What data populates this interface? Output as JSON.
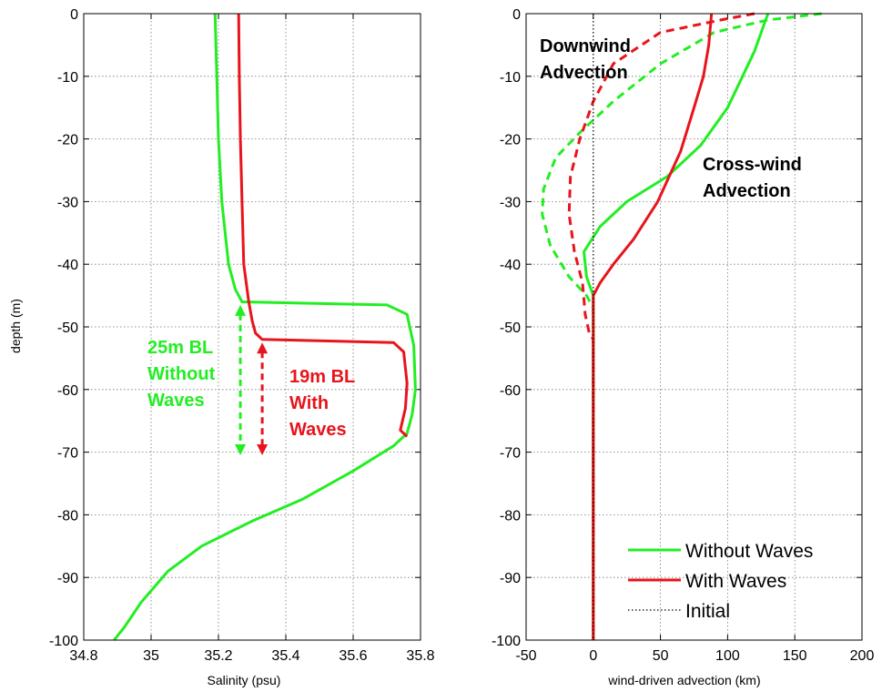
{
  "colors": {
    "without_waves": "#22ee22",
    "with_waves": "#e8141c",
    "initial": "#000000"
  },
  "chart_data": [
    {
      "type": "line",
      "xlabel": "Salinity (psu)",
      "ylabel": "depth (m)",
      "xlim": [
        34.8,
        35.8
      ],
      "ylim": [
        -100,
        0
      ],
      "xticks": [
        "34.8",
        "35",
        "35.2",
        "35.4",
        "35.6",
        "35.8"
      ],
      "yticks": [
        "0",
        "-10",
        "-20",
        "-30",
        "-40",
        "-50",
        "-60",
        "-70",
        "-80",
        "-90",
        "-100"
      ],
      "grid": true,
      "series": [
        {
          "key": "without_waves",
          "style": "solid",
          "points": [
            [
              35.19,
              0
            ],
            [
              35.195,
              -10
            ],
            [
              35.2,
              -20
            ],
            [
              35.21,
              -30
            ],
            [
              35.23,
              -40
            ],
            [
              35.25,
              -44
            ],
            [
              35.27,
              -46
            ],
            [
              35.7,
              -46.5
            ],
            [
              35.76,
              -48
            ],
            [
              35.78,
              -53
            ],
            [
              35.785,
              -60
            ],
            [
              35.775,
              -64
            ],
            [
              35.76,
              -67
            ],
            [
              35.72,
              -69
            ],
            [
              35.6,
              -73
            ],
            [
              35.45,
              -77.5
            ],
            [
              35.3,
              -81
            ],
            [
              35.15,
              -85
            ],
            [
              35.05,
              -89
            ],
            [
              34.97,
              -94
            ],
            [
              34.92,
              -98
            ],
            [
              34.89,
              -100
            ]
          ]
        },
        {
          "key": "with_waves",
          "style": "solid",
          "points": [
            [
              35.26,
              0
            ],
            [
              35.262,
              -10
            ],
            [
              35.265,
              -20
            ],
            [
              35.27,
              -30
            ],
            [
              35.275,
              -40
            ],
            [
              35.29,
              -46
            ],
            [
              35.3,
              -49
            ],
            [
              35.31,
              -51
            ],
            [
              35.33,
              -52
            ],
            [
              35.72,
              -52.5
            ],
            [
              35.75,
              -54
            ],
            [
              35.76,
              -59
            ],
            [
              35.755,
              -63
            ],
            [
              35.74,
              -66.5
            ],
            [
              35.76,
              -67.5
            ]
          ]
        }
      ],
      "annotations": [
        {
          "key": "without_waves",
          "lines": [
            "25m BL",
            "Without",
            "Waves"
          ]
        },
        {
          "key": "with_waves",
          "lines": [
            "19m BL",
            "With",
            "Waves"
          ]
        }
      ]
    },
    {
      "type": "line",
      "xlabel": "wind-driven advection (km)",
      "xlim": [
        -50,
        200
      ],
      "ylim": [
        -100,
        0
      ],
      "xticks": [
        "-50",
        "0",
        "50",
        "100",
        "150",
        "200"
      ],
      "yticks": [
        "0",
        "-10",
        "-20",
        "-30",
        "-40",
        "-50",
        "-60",
        "-70",
        "-80",
        "-90",
        "-100"
      ],
      "grid": true,
      "series": [
        {
          "key": "without_waves",
          "name": "Without Waves",
          "style": "solid",
          "points": [
            [
              130,
              0
            ],
            [
              120,
              -6
            ],
            [
              100,
              -15
            ],
            [
              80,
              -21
            ],
            [
              55,
              -26
            ],
            [
              25,
              -30
            ],
            [
              5,
              -34
            ],
            [
              -7,
              -38
            ],
            [
              -5,
              -42
            ],
            [
              0,
              -45
            ],
            [
              0,
              -52
            ],
            [
              0,
              -100
            ]
          ]
        },
        {
          "key": "without_waves_dashed",
          "style": "dashed",
          "points": [
            [
              170,
              0
            ],
            [
              130,
              -1
            ],
            [
              90,
              -3
            ],
            [
              50,
              -8
            ],
            [
              15,
              -14
            ],
            [
              -10,
              -19
            ],
            [
              -28,
              -23
            ],
            [
              -37,
              -28
            ],
            [
              -38,
              -32
            ],
            [
              -32,
              -37
            ],
            [
              -18,
              -42
            ],
            [
              -5,
              -45
            ],
            [
              0,
              -47
            ],
            [
              0,
              -100
            ]
          ]
        },
        {
          "key": "with_waves",
          "name": "With Waves",
          "style": "solid",
          "points": [
            [
              88,
              0
            ],
            [
              86,
              -5
            ],
            [
              82,
              -10
            ],
            [
              75,
              -15
            ],
            [
              65,
              -22
            ],
            [
              48,
              -30
            ],
            [
              30,
              -36
            ],
            [
              15,
              -40
            ],
            [
              5,
              -43
            ],
            [
              0,
              -45
            ],
            [
              0,
              -52
            ],
            [
              0,
              -100
            ]
          ]
        },
        {
          "key": "with_waves_dashed",
          "style": "dashed",
          "points": [
            [
              120,
              0
            ],
            [
              95,
              -1
            ],
            [
              50,
              -3
            ],
            [
              15,
              -8
            ],
            [
              0,
              -14
            ],
            [
              -10,
              -20
            ],
            [
              -17,
              -26
            ],
            [
              -18,
              -32
            ],
            [
              -14,
              -38
            ],
            [
              -8,
              -43
            ],
            [
              -6,
              -48
            ],
            [
              -3,
              -51
            ],
            [
              0,
              -52
            ],
            [
              0,
              -100
            ]
          ]
        },
        {
          "key": "initial",
          "name": "Initial",
          "style": "dotted",
          "points": [
            [
              0,
              0
            ],
            [
              0,
              -100
            ]
          ]
        }
      ],
      "annotations": [
        {
          "lines": [
            "Downwind",
            "Advection"
          ]
        },
        {
          "lines": [
            "Cross-wind",
            "Advection"
          ]
        }
      ],
      "legend": {
        "placement": "bottom-right",
        "entries": [
          "Without Waves",
          "With Waves",
          "Initial"
        ]
      }
    }
  ]
}
